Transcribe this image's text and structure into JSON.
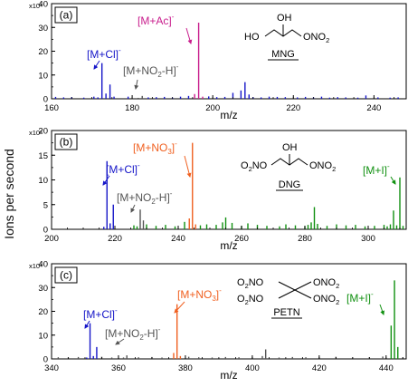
{
  "page": {
    "ylabel": "Ions per second"
  },
  "chart_data": [
    {
      "type": "bar",
      "panel_label": "(a)",
      "compound": "MNG",
      "structure_labels": [
        "OH",
        "HO",
        "ONO2"
      ],
      "xlabel": "m/z",
      "ylabel": "Ions per second",
      "xlim": [
        160,
        248
      ],
      "ylim": [
        0,
        40000
      ],
      "x_ticks": [
        160,
        180,
        200,
        220,
        240
      ],
      "y_ticks": [
        0,
        10,
        20,
        30,
        40
      ],
      "y_multiplier": "x10³",
      "series": [
        {
          "name": "[M+Cl]-",
          "color": "#1515c8",
          "x": [
            170.5,
            171.5,
            172.5,
            173.5,
            174.5,
            175.5
          ],
          "y": [
            900,
            600,
            15000,
            2200,
            6000,
            900
          ]
        },
        {
          "name": "[M+Ac]-",
          "color": "#c81c8c",
          "x": [
            195.5,
            196.5,
            197.5
          ],
          "y": [
            2000,
            32000,
            900
          ]
        },
        {
          "name": "[M+NO2-H]-",
          "color": "#555555",
          "x": [
            181.5,
            182.5
          ],
          "y": [
            400,
            1200
          ]
        },
        {
          "name": "",
          "color": "#1515c8",
          "x": [
            161,
            163,
            165,
            168,
            179,
            184,
            186,
            188,
            190,
            192,
            194,
            199,
            201,
            203,
            205,
            207,
            208,
            209,
            210,
            212,
            214,
            216,
            218,
            221,
            223,
            225,
            227,
            229,
            231,
            233,
            236,
            238,
            241,
            244,
            246
          ],
          "y": [
            800,
            600,
            700,
            500,
            900,
            600,
            700,
            800,
            500,
            900,
            1200,
            1000,
            700,
            800,
            2500,
            3500,
            7000,
            1800,
            700,
            600,
            900,
            800,
            700,
            600,
            800,
            600,
            900,
            500,
            700,
            600,
            500,
            1400,
            600,
            500,
            600
          ]
        }
      ],
      "annotations": [
        {
          "text": "[M+Cl]",
          "sup": "-",
          "color": "#1515c8"
        },
        {
          "text": "[M+Ac]",
          "sup": "-",
          "color": "#c81c8c"
        },
        {
          "text": "[M+NO2-H]",
          "sup": "-",
          "color": "#555555"
        }
      ]
    },
    {
      "type": "bar",
      "panel_label": "(b)",
      "compound": "DNG",
      "structure_labels": [
        "OH",
        "O2NO",
        "ONO2"
      ],
      "xlabel": "m/z",
      "ylabel": "Ions per second",
      "xlim": [
        200,
        312
      ],
      "ylim": [
        0,
        20000
      ],
      "x_ticks": [
        200,
        220,
        240,
        260,
        280,
        300
      ],
      "y_ticks": [
        0,
        5,
        10,
        15,
        20
      ],
      "y_multiplier": "x10³",
      "series": [
        {
          "name": "[M+Cl]-",
          "color": "#1515c8",
          "x": [
            216.5,
            217.5,
            218.5,
            219.5
          ],
          "y": [
            500,
            13800,
            1200,
            5000
          ]
        },
        {
          "name": "[M+NO2-H]-",
          "color": "#555555",
          "x": [
            228,
            229
          ],
          "y": [
            4000,
            1800
          ]
        },
        {
          "name": "[M+NO3]-",
          "color": "#f06020",
          "x": [
            243.5,
            244.5,
            245.5
          ],
          "y": [
            2200,
            17500,
            1000
          ]
        },
        {
          "name": "[M+I]-",
          "color": "#109010",
          "x": [
            226,
            227,
            230,
            233,
            236,
            239,
            242,
            247,
            249,
            252,
            254,
            255,
            257,
            260,
            262,
            265,
            268,
            272,
            274,
            277,
            280,
            281,
            282,
            283,
            284,
            287,
            290,
            293,
            296,
            299,
            302,
            305,
            306,
            307,
            308,
            309,
            310,
            311
          ],
          "y": [
            800,
            600,
            1000,
            700,
            900,
            600,
            1500,
            800,
            1000,
            900,
            1400,
            2400,
            1300,
            700,
            1200,
            900,
            700,
            600,
            1000,
            800,
            600,
            900,
            1400,
            4500,
            1100,
            700,
            1000,
            800,
            900,
            600,
            700,
            900,
            600,
            1000,
            3800,
            800,
            10500,
            700
          ]
        }
      ],
      "annotations": [
        {
          "text": "[M+NO3]",
          "sup": "-",
          "color": "#f06020"
        },
        {
          "text": "[M+Cl]",
          "sup": "-",
          "color": "#1515c8"
        },
        {
          "text": "[M+NO2-H]",
          "sup": "-",
          "color": "#555555"
        },
        {
          "text": "[M+I]",
          "sup": "-",
          "color": "#109010"
        }
      ]
    },
    {
      "type": "bar",
      "panel_label": "(c)",
      "compound": "PETN",
      "structure_labels": [
        "O2NO",
        "O2NO",
        "ONO2",
        "ONO2"
      ],
      "xlabel": "m/z",
      "ylabel": "Ions per second",
      "xlim": [
        340,
        446
      ],
      "ylim": [
        0,
        40000
      ],
      "x_ticks": [
        340,
        360,
        380,
        400,
        420,
        440
      ],
      "y_ticks": [
        0,
        10,
        20,
        30,
        40
      ],
      "y_multiplier": "x10³",
      "series": [
        {
          "name": "[M+Cl]-",
          "color": "#1515c8",
          "x": [
            350.5,
            351.5,
            352.5,
            353.5
          ],
          "y": [
            600,
            15000,
            1200,
            5000
          ]
        },
        {
          "name": "[M+NO2-H]-",
          "color": "#555555",
          "x": [
            361.5,
            362.5
          ],
          "y": [
            600,
            1500
          ]
        },
        {
          "name": "[M+NO3]-",
          "color": "#f06020",
          "x": [
            376.5,
            377.5,
            378.5
          ],
          "y": [
            2500,
            23000,
            1200
          ]
        },
        {
          "name": "[M+I]-",
          "color": "#109010",
          "x": [
            441.5,
            442.5,
            443.5
          ],
          "y": [
            14000,
            33000,
            5000
          ]
        },
        {
          "name": "",
          "color": "#555555",
          "x": [
            342,
            345,
            348,
            355,
            358,
            366,
            370,
            373,
            381,
            384,
            388,
            392,
            396,
            400,
            403,
            404,
            408,
            412,
            416,
            420,
            425,
            430,
            435,
            439,
            445
          ],
          "y": [
            700,
            600,
            800,
            900,
            600,
            700,
            800,
            600,
            900,
            700,
            600,
            800,
            700,
            600,
            1200,
            4000,
            600,
            800,
            700,
            600,
            900,
            600,
            700,
            1000,
            600
          ]
        }
      ],
      "annotations": [
        {
          "text": "[M+Cl]",
          "sup": "-",
          "color": "#1515c8"
        },
        {
          "text": "[M+NO3]",
          "sup": "-",
          "color": "#f06020"
        },
        {
          "text": "[M+NO2-H]",
          "sup": "-",
          "color": "#555555"
        },
        {
          "text": "[M+I]",
          "sup": "-",
          "color": "#109010"
        }
      ]
    }
  ]
}
